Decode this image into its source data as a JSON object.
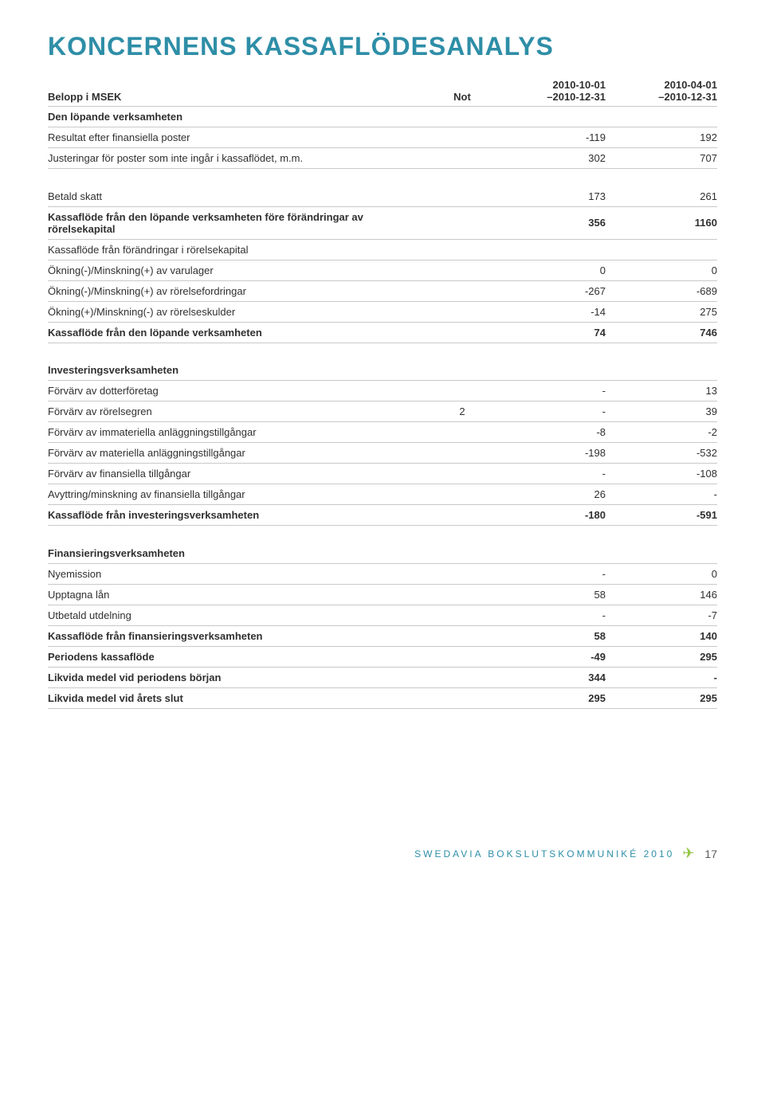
{
  "title": "KONCERNENS KASSAFLÖDESANALYS",
  "header": {
    "c0": "Belopp i MSEK",
    "c1": "Not",
    "c2a": "2010-10-01",
    "c2b": "–2010-12-31",
    "c3a": "2010-04-01",
    "c3b": "–2010-12-31"
  },
  "sections": [
    {
      "title": "Den löpande verksamheten",
      "rows": [
        {
          "label": "Resultat efter finansiella poster",
          "v1": "-119",
          "v2": "192"
        },
        {
          "label": "Justeringar för poster som inte ingår i kassaflödet, m.m.",
          "v1": "302",
          "v2": "707"
        }
      ]
    },
    {
      "title": "",
      "rows": [
        {
          "label": "Betald skatt",
          "v1": "173",
          "v2": "261"
        },
        {
          "label": "Kassaflöde från den löpande verksamheten före förändringar av rörelsekapital",
          "bold": true,
          "v1": "356",
          "v2": "1160"
        },
        {
          "label": "Kassaflöde från förändringar i rörelsekapital",
          "v1": "",
          "v2": ""
        },
        {
          "label": "Ökning(-)/Minskning(+) av varulager",
          "v1": "0",
          "v2": "0"
        },
        {
          "label": "Ökning(-)/Minskning(+) av rörelsefordringar",
          "v1": "-267",
          "v2": "-689"
        },
        {
          "label": "Ökning(+)/Minskning(-) av rörelseskulder",
          "v1": "-14",
          "v2": "275"
        },
        {
          "label": "Kassaflöde från den löpande verksamheten",
          "bold": true,
          "v1": "74",
          "v2": "746"
        }
      ]
    },
    {
      "title": "Investeringsverksamheten",
      "rows": [
        {
          "label": "Förvärv av dotterföretag",
          "v1": "-",
          "v2": "13"
        },
        {
          "label": "Förvärv av rörelsegren",
          "note": "2",
          "v1": "-",
          "v2": "39"
        },
        {
          "label": "Förvärv av immateriella anläggningstillgångar",
          "v1": "-8",
          "v2": "-2"
        },
        {
          "label": "Förvärv av materiella anläggningstillgångar",
          "v1": "-198",
          "v2": "-532"
        },
        {
          "label": "Förvärv av finansiella tillgångar",
          "v1": "-",
          "v2": "-108"
        },
        {
          "label": "Avyttring/minskning av finansiella tillgångar",
          "v1": "26",
          "v2": "-"
        },
        {
          "label": "Kassaflöde från investeringsverksamheten",
          "bold": true,
          "v1": "-180",
          "v2": "-591"
        }
      ]
    },
    {
      "title": "Finansieringsverksamheten",
      "rows": [
        {
          "label": "Nyemission",
          "v1": "-",
          "v2": "0"
        },
        {
          "label": "Upptagna lån",
          "v1": "58",
          "v2": "146"
        },
        {
          "label": "Utbetald utdelning",
          "v1": "-",
          "v2": "-7"
        },
        {
          "label": "Kassaflöde från finansieringsverksamheten",
          "bold": true,
          "v1": "58",
          "v2": "140"
        },
        {
          "label": "Periodens kassaflöde",
          "bold": true,
          "v1": "-49",
          "v2": "295"
        },
        {
          "label": "Likvida medel vid periodens början",
          "bold": true,
          "v1": "344",
          "v2": "-"
        },
        {
          "label": "Likvida medel vid årets slut",
          "bold": true,
          "v1": "295",
          "v2": "295"
        }
      ]
    }
  ],
  "footer": {
    "text": "SWEDAVIA BOKSLUTSKOMMUNIKÉ 2010",
    "page": "17"
  },
  "colors": {
    "heading": "#2e8ea7",
    "accent_green": "#8fc43f",
    "rule": "#c9c9c9",
    "text": "#303030"
  }
}
